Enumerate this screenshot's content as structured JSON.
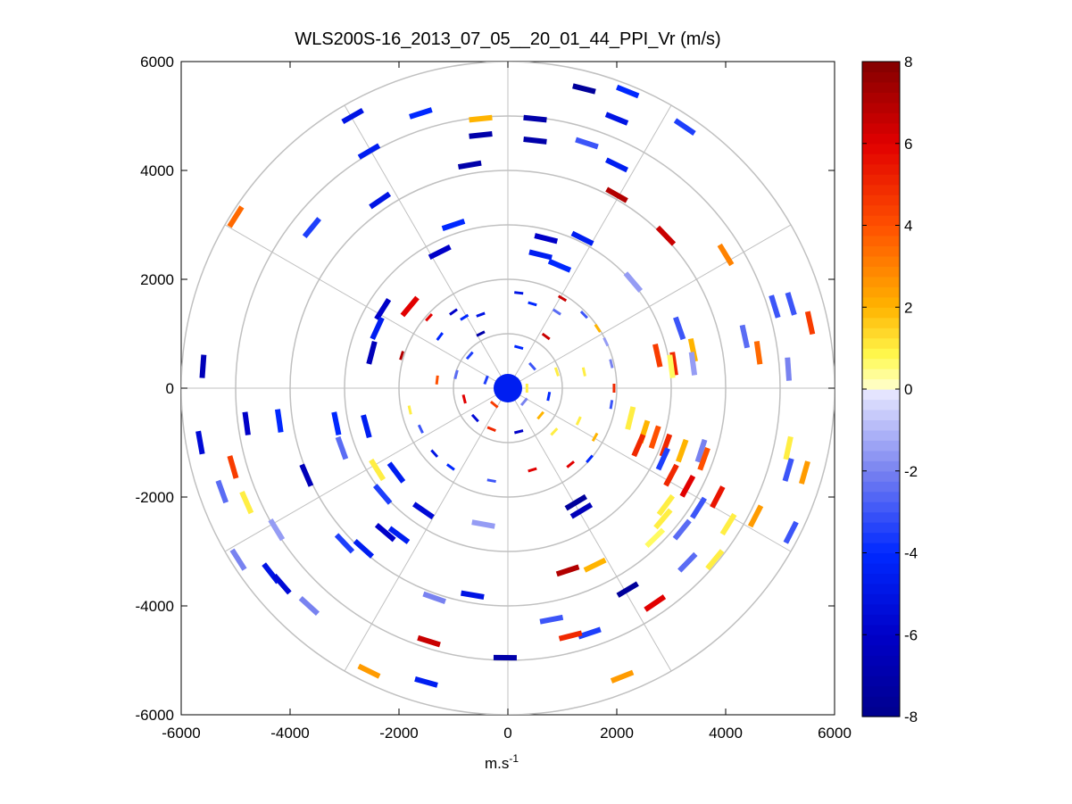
{
  "chart_data": {
    "type": "scatter",
    "title": "WLS200S-16_2013_07_05__20_01_44_PPI_Vr (m/s)",
    "xlabel": "m.s",
    "xlabel_sup": "-1",
    "ylabel": "",
    "xlim": [
      -6000,
      6000
    ],
    "ylim": [
      -6000,
      6000
    ],
    "x_ticks": [
      -6000,
      -4000,
      -2000,
      0,
      2000,
      4000,
      6000
    ],
    "y_ticks": [
      -6000,
      -4000,
      -2000,
      0,
      2000,
      4000,
      6000
    ],
    "x_tick_labels": [
      "-6000",
      "-4000",
      "-2000",
      "0",
      "2000",
      "4000",
      "6000"
    ],
    "y_tick_labels": [
      "-6000",
      "-4000",
      "-2000",
      "0",
      "2000",
      "4000",
      "6000"
    ],
    "polar_grid": {
      "rings": [
        1000,
        2000,
        3000,
        4000,
        5000,
        6000
      ],
      "spoke_angles_deg": [
        0,
        30,
        60,
        90,
        120,
        150,
        180,
        210,
        240,
        270,
        300,
        330
      ],
      "color": "#c0c0c0"
    },
    "grid": true,
    "colorbar": {
      "min": -8,
      "max": 8,
      "ticks": [
        -8,
        -6,
        -4,
        -2,
        0,
        2,
        4,
        6,
        8
      ],
      "tick_labels": [
        "-8",
        "-6",
        "-4",
        "-2",
        "0",
        "2",
        "4",
        "6",
        "8"
      ],
      "colormap": "blue-white-red",
      "placement": "right"
    },
    "points": [
      {
        "x": 1400,
        "y": 5500,
        "v": -7.5
      },
      {
        "x": 2200,
        "y": 5450,
        "v": -4.0
      },
      {
        "x": -2850,
        "y": 5000,
        "v": -5.0
      },
      {
        "x": -1600,
        "y": 5050,
        "v": -4.0
      },
      {
        "x": -500,
        "y": 4950,
        "v": 2.0
      },
      {
        "x": 500,
        "y": 4950,
        "v": -7.0
      },
      {
        "x": 2000,
        "y": 4950,
        "v": -5.0
      },
      {
        "x": 3250,
        "y": 4800,
        "v": -3.5
      },
      {
        "x": -500,
        "y": 4650,
        "v": -7.0
      },
      {
        "x": 500,
        "y": 4550,
        "v": -7.0
      },
      {
        "x": 1450,
        "y": 4500,
        "v": -3.0
      },
      {
        "x": -2550,
        "y": 4350,
        "v": -4.5
      },
      {
        "x": -700,
        "y": 4100,
        "v": -7.0
      },
      {
        "x": 2000,
        "y": 4100,
        "v": -4.5
      },
      {
        "x": -2350,
        "y": 3450,
        "v": -5.0
      },
      {
        "x": 2000,
        "y": 3550,
        "v": 7.0
      },
      {
        "x": -5000,
        "y": 3150,
        "v": 3.5
      },
      {
        "x": -3600,
        "y": 2950,
        "v": -3.5
      },
      {
        "x": -1000,
        "y": 3000,
        "v": -4.0
      },
      {
        "x": 2900,
        "y": 2800,
        "v": 6.5
      },
      {
        "x": 4000,
        "y": 2450,
        "v": 3.0
      },
      {
        "x": -1250,
        "y": 2500,
        "v": -6.0
      },
      {
        "x": 700,
        "y": 2750,
        "v": -6.0
      },
      {
        "x": 1370,
        "y": 2750,
        "v": -4.5
      },
      {
        "x": 600,
        "y": 2450,
        "v": -4.5
      },
      {
        "x": 950,
        "y": 2250,
        "v": -4.0
      },
      {
        "x": 2300,
        "y": 1950,
        "v": -1.5
      },
      {
        "x": -2300,
        "y": 1450,
        "v": -6.0
      },
      {
        "x": -1800,
        "y": 1500,
        "v": 6.0
      },
      {
        "x": 4900,
        "y": 1500,
        "v": -3.0
      },
      {
        "x": 5200,
        "y": 1550,
        "v": -3.0
      },
      {
        "x": 5550,
        "y": 1200,
        "v": 4.5
      },
      {
        "x": 3150,
        "y": 1100,
        "v": -3.0
      },
      {
        "x": 4350,
        "y": 950,
        "v": -2.5
      },
      {
        "x": -2400,
        "y": 1100,
        "v": -4.5
      },
      {
        "x": -2500,
        "y": 650,
        "v": -6.5
      },
      {
        "x": 3400,
        "y": 700,
        "v": 2.0
      },
      {
        "x": 4600,
        "y": 650,
        "v": 3.5
      },
      {
        "x": 2750,
        "y": 600,
        "v": 4.5
      },
      {
        "x": 3050,
        "y": 450,
        "v": 5.0
      },
      {
        "x": 3400,
        "y": 450,
        "v": -1.5
      },
      {
        "x": 3000,
        "y": 400,
        "v": 0.7
      },
      {
        "x": 5150,
        "y": 350,
        "v": -2.0
      },
      {
        "x": -5600,
        "y": 400,
        "v": -6.5
      },
      {
        "x": -4800,
        "y": -650,
        "v": -6.0
      },
      {
        "x": -4200,
        "y": -600,
        "v": -4.0
      },
      {
        "x": -3150,
        "y": -650,
        "v": -4.0
      },
      {
        "x": -2600,
        "y": -700,
        "v": -4.5
      },
      {
        "x": -5650,
        "y": -1000,
        "v": -5.5
      },
      {
        "x": -3050,
        "y": -1100,
        "v": -2.5
      },
      {
        "x": -5050,
        "y": -1450,
        "v": 4.5
      },
      {
        "x": -3700,
        "y": -1600,
        "v": -6.5
      },
      {
        "x": -2400,
        "y": -1500,
        "v": 1.0
      },
      {
        "x": -2050,
        "y": -1550,
        "v": -4.5
      },
      {
        "x": -5250,
        "y": -1900,
        "v": -2.5
      },
      {
        "x": -4800,
        "y": -2100,
        "v": 1.0
      },
      {
        "x": -2300,
        "y": -1950,
        "v": -3.5
      },
      {
        "x": -1550,
        "y": -2250,
        "v": -5.5
      },
      {
        "x": 2250,
        "y": -550,
        "v": 1.0
      },
      {
        "x": 2500,
        "y": -800,
        "v": 2.0
      },
      {
        "x": 2700,
        "y": -900,
        "v": 4.0
      },
      {
        "x": 2400,
        "y": -1050,
        "v": 5.0
      },
      {
        "x": 2900,
        "y": -1050,
        "v": 5.0
      },
      {
        "x": 2850,
        "y": -1300,
        "v": -3.5
      },
      {
        "x": 3000,
        "y": -1600,
        "v": 5.0
      },
      {
        "x": 3300,
        "y": -1800,
        "v": 6.0
      },
      {
        "x": 3550,
        "y": -1150,
        "v": -2.0
      },
      {
        "x": 3200,
        "y": -1150,
        "v": 2.0
      },
      {
        "x": 3600,
        "y": -1300,
        "v": 4.0
      },
      {
        "x": 5150,
        "y": -1100,
        "v": 1.0
      },
      {
        "x": 5150,
        "y": -1500,
        "v": -3.0
      },
      {
        "x": 5450,
        "y": -1550,
        "v": 2.5
      },
      {
        "x": 1250,
        "y": -2100,
        "v": -7.5
      },
      {
        "x": 1350,
        "y": -2250,
        "v": -6.5
      },
      {
        "x": 2900,
        "y": -2150,
        "v": 1.0
      },
      {
        "x": 2850,
        "y": -2400,
        "v": 1.0
      },
      {
        "x": 3500,
        "y": -2200,
        "v": -3.0
      },
      {
        "x": 3850,
        "y": -2000,
        "v": 5.5
      },
      {
        "x": 3200,
        "y": -2600,
        "v": -2.5
      },
      {
        "x": 4050,
        "y": -2500,
        "v": 1.0
      },
      {
        "x": 4550,
        "y": -2350,
        "v": 2.5
      },
      {
        "x": 5200,
        "y": -2650,
        "v": -3.0
      },
      {
        "x": 2700,
        "y": -2750,
        "v": 0.7
      },
      {
        "x": 3800,
        "y": -3150,
        "v": 1.0
      },
      {
        "x": 3300,
        "y": -3200,
        "v": -2.5
      },
      {
        "x": -4250,
        "y": -2600,
        "v": -1.5
      },
      {
        "x": -4950,
        "y": -3150,
        "v": -2.0
      },
      {
        "x": -3000,
        "y": -2850,
        "v": -3.5
      },
      {
        "x": -2650,
        "y": -2950,
        "v": -4.5
      },
      {
        "x": -2250,
        "y": -2650,
        "v": -6.0
      },
      {
        "x": -2000,
        "y": -2700,
        "v": -4.5
      },
      {
        "x": -450,
        "y": -2500,
        "v": -1.5
      },
      {
        "x": -4350,
        "y": -3400,
        "v": -5.0
      },
      {
        "x": -4150,
        "y": -3600,
        "v": -5.5
      },
      {
        "x": -3650,
        "y": -4000,
        "v": -2.0
      },
      {
        "x": 1100,
        "y": -3350,
        "v": 7.0
      },
      {
        "x": 1600,
        "y": -3250,
        "v": 2.0
      },
      {
        "x": 2200,
        "y": -3700,
        "v": -7.5
      },
      {
        "x": 2700,
        "y": -3950,
        "v": 6.0
      },
      {
        "x": -1350,
        "y": -3850,
        "v": -2.0
      },
      {
        "x": -650,
        "y": -3800,
        "v": -5.0
      },
      {
        "x": 800,
        "y": -4250,
        "v": -3.0
      },
      {
        "x": 1500,
        "y": -4500,
        "v": -3.5
      },
      {
        "x": 1150,
        "y": -4550,
        "v": 5.0
      },
      {
        "x": -1450,
        "y": -4650,
        "v": 6.5
      },
      {
        "x": -50,
        "y": -4950,
        "v": -7.0
      },
      {
        "x": -2550,
        "y": -5200,
        "v": 2.5
      },
      {
        "x": -1500,
        "y": -5400,
        "v": -4.5
      },
      {
        "x": 2100,
        "y": -5300,
        "v": 2.5
      },
      {
        "x": -1000,
        "y": 1400,
        "v": -6.0
      },
      {
        "x": -800,
        "y": 1300,
        "v": -4.0
      },
      {
        "x": -500,
        "y": 1350,
        "v": -5.0
      },
      {
        "x": 200,
        "y": 1750,
        "v": -5.0
      },
      {
        "x": 450,
        "y": 1550,
        "v": -4.0
      },
      {
        "x": 900,
        "y": 1400,
        "v": -2.5
      },
      {
        "x": 1000,
        "y": 1650,
        "v": 6.5
      },
      {
        "x": 1400,
        "y": 1350,
        "v": -3.0
      },
      {
        "x": -1450,
        "y": 1300,
        "v": 6.0
      },
      {
        "x": -1250,
        "y": 950,
        "v": -4.0
      },
      {
        "x": 1650,
        "y": 1100,
        "v": 2.0
      },
      {
        "x": 1800,
        "y": 850,
        "v": -1.5
      },
      {
        "x": -1950,
        "y": 600,
        "v": 7.0
      },
      {
        "x": 1900,
        "y": 450,
        "v": -2.0
      },
      {
        "x": 1950,
        "y": 0,
        "v": 5.0
      },
      {
        "x": 1900,
        "y": -300,
        "v": -3.0
      },
      {
        "x": -1800,
        "y": -400,
        "v": 1.0
      },
      {
        "x": -1600,
        "y": -750,
        "v": -3.0
      },
      {
        "x": -1350,
        "y": -1200,
        "v": -5.0
      },
      {
        "x": -1050,
        "y": -1450,
        "v": -4.0
      },
      {
        "x": 1150,
        "y": -1400,
        "v": 6.0
      },
      {
        "x": 1500,
        "y": -1300,
        "v": -4.0
      },
      {
        "x": 450,
        "y": -1500,
        "v": 6.0
      },
      {
        "x": -300,
        "y": -1700,
        "v": -3.0
      },
      {
        "x": 1300,
        "y": -600,
        "v": 1.0
      },
      {
        "x": 1600,
        "y": -900,
        "v": 2.0
      },
      {
        "x": 1400,
        "y": 300,
        "v": 1.0
      },
      {
        "x": -1300,
        "y": 150,
        "v": 4.0
      },
      {
        "x": -500,
        "y": 1000,
        "v": -7.0
      },
      {
        "x": 700,
        "y": 950,
        "v": 6.5
      },
      {
        "x": 200,
        "y": 750,
        "v": -4.0
      },
      {
        "x": -700,
        "y": 600,
        "v": -3.5
      },
      {
        "x": 900,
        "y": 300,
        "v": 1.0
      },
      {
        "x": 750,
        "y": -150,
        "v": -4.0
      },
      {
        "x": 600,
        "y": -500,
        "v": 2.0
      },
      {
        "x": -600,
        "y": -550,
        "v": -5.5
      },
      {
        "x": -300,
        "y": -750,
        "v": 5.0
      },
      {
        "x": 200,
        "y": -800,
        "v": -6.0
      },
      {
        "x": 850,
        "y": -800,
        "v": 1.0
      },
      {
        "x": -800,
        "y": -200,
        "v": 6.0
      },
      {
        "x": -950,
        "y": 250,
        "v": -2.5
      },
      {
        "x": 450,
        "y": 400,
        "v": -3.0
      },
      {
        "x": -400,
        "y": 150,
        "v": -3.5
      },
      {
        "x": 350,
        "y": 0,
        "v": 1.0
      },
      {
        "x": 300,
        "y": -250,
        "v": -2.0
      },
      {
        "x": -250,
        "y": -300,
        "v": 4.5
      },
      {
        "x": 0,
        "y": 0,
        "v": -4.5
      }
    ]
  }
}
